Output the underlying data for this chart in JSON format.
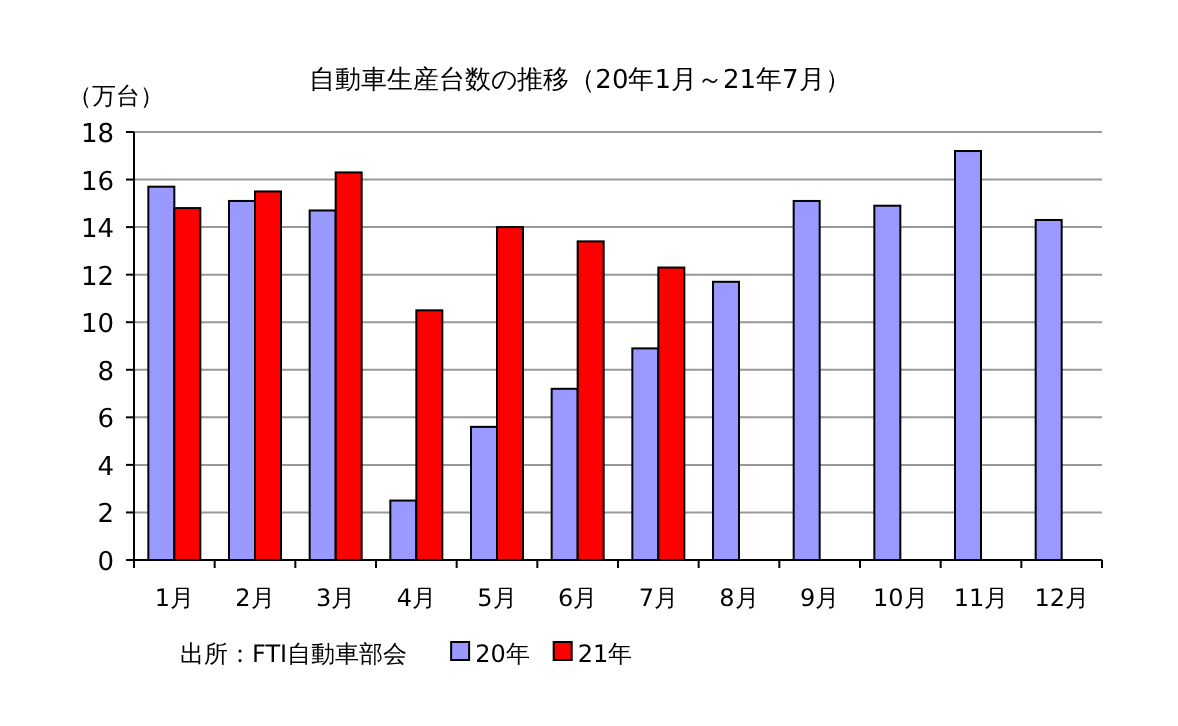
{
  "chart_data": {
    "type": "bar",
    "title": "自動車生産台数の推移（20年1月～21年7月）",
    "ylabel": "（万台）",
    "categories": [
      "1月",
      "2月",
      "3月",
      "4月",
      "5月",
      "6月",
      "7月",
      "8月",
      "9月",
      "10月",
      "11月",
      "12月"
    ],
    "series": [
      {
        "name": "20年",
        "color": "#9999ff",
        "values": [
          15.7,
          15.1,
          14.7,
          2.5,
          5.6,
          7.2,
          8.9,
          11.7,
          15.1,
          14.9,
          17.2,
          14.3
        ]
      },
      {
        "name": "21年",
        "color": "#ff0000",
        "values": [
          14.8,
          15.5,
          16.3,
          10.5,
          14.0,
          13.4,
          12.3,
          null,
          null,
          null,
          null,
          null
        ]
      }
    ],
    "ylim": [
      0,
      18
    ],
    "yticks": [
      0,
      2,
      4,
      6,
      8,
      10,
      12,
      14,
      16,
      18
    ],
    "grid": "y",
    "legend": "bottom",
    "annotations": [
      "出所：FTI自動車部会"
    ]
  }
}
